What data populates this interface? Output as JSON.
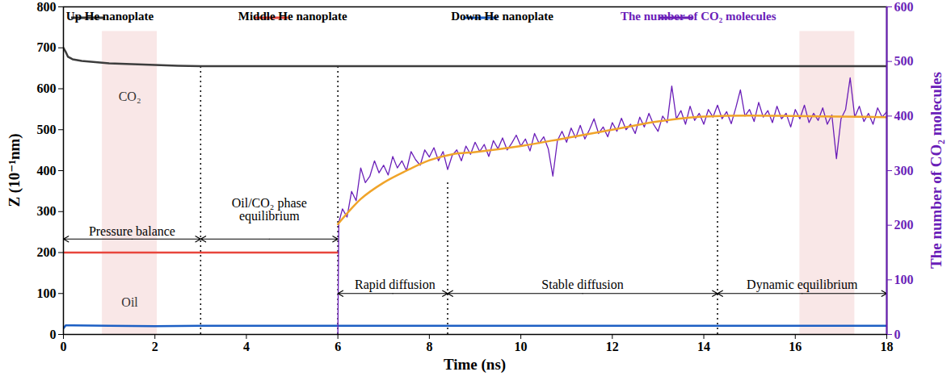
{
  "chart_data": {
    "type": "line",
    "xlabel": "Time (ns)",
    "ylabel": "Z (10⁻¹nm)",
    "y2label": "The number of CO₂ molecules",
    "xlim": [
      0,
      18
    ],
    "xticks": [
      0,
      2,
      4,
      6,
      8,
      10,
      12,
      14,
      16,
      18
    ],
    "ylim": [
      0,
      800
    ],
    "yticks": [
      0,
      100,
      200,
      300,
      400,
      500,
      600,
      700,
      800
    ],
    "y2lim": [
      0,
      600
    ],
    "y2ticks": [
      0,
      100,
      200,
      300,
      400,
      500,
      600
    ],
    "legend": "top",
    "series": [
      {
        "name": "Up He nanoplate",
        "color": "#3d3d3d",
        "line_style": "solid",
        "x": [
          0,
          0.05,
          0.1,
          0.2,
          0.4,
          0.7,
          1,
          1.5,
          2,
          2.5,
          3,
          6,
          10,
          14,
          18
        ],
        "values": [
          700,
          690,
          678,
          672,
          668,
          665,
          662,
          660,
          658,
          656,
          655,
          655,
          655,
          655,
          655
        ]
      },
      {
        "name": "Middle He nanoplate",
        "color": "#e8453c",
        "line_style": "solid",
        "x": [
          0,
          6
        ],
        "values": [
          200,
          200
        ]
      },
      {
        "name": "Down He nanoplate",
        "color": "#1c5fc4",
        "line_style": "solid",
        "x": [
          0,
          0.05,
          0.2,
          1,
          2,
          3,
          18
        ],
        "values": [
          15,
          22,
          22,
          21,
          20,
          21,
          21
        ]
      },
      {
        "name": "The number of CO₂ molecules",
        "color": "#6a1eb8",
        "axis": "y2",
        "line_style": "solid",
        "x": [
          6,
          6.02,
          6.1,
          6.2,
          6.3,
          6.4,
          6.5,
          6.6,
          6.7,
          6.8,
          6.9,
          7,
          7.1,
          7.2,
          7.3,
          7.4,
          7.5,
          7.6,
          7.7,
          7.8,
          7.9,
          8,
          8.1,
          8.2,
          8.3,
          8.4,
          8.5,
          8.6,
          8.7,
          8.8,
          8.9,
          9,
          9.1,
          9.2,
          9.3,
          9.4,
          9.5,
          9.6,
          9.7,
          9.8,
          9.9,
          10,
          10.1,
          10.2,
          10.3,
          10.4,
          10.5,
          10.6,
          10.7,
          10.8,
          10.9,
          11,
          11.1,
          11.2,
          11.3,
          11.4,
          11.5,
          11.6,
          11.7,
          11.8,
          11.9,
          12,
          12.1,
          12.2,
          12.3,
          12.4,
          12.5,
          12.6,
          12.7,
          12.8,
          12.9,
          13,
          13.1,
          13.2,
          13.3,
          13.4,
          13.5,
          13.6,
          13.7,
          13.8,
          13.9,
          14,
          14.1,
          14.2,
          14.3,
          14.4,
          14.5,
          14.6,
          14.7,
          14.8,
          14.9,
          15,
          15.1,
          15.2,
          15.3,
          15.4,
          15.5,
          15.6,
          15.7,
          15.8,
          15.9,
          16,
          16.1,
          16.2,
          16.3,
          16.4,
          16.5,
          16.6,
          16.7,
          16.8,
          16.9,
          17,
          17.1,
          17.2,
          17.3,
          17.4,
          17.5,
          17.6,
          17.7,
          17.8,
          17.9,
          18
        ],
        "values": [
          0,
          205,
          230,
          215,
          262,
          245,
          305,
          278,
          290,
          318,
          296,
          310,
          292,
          326,
          305,
          318,
          300,
          335,
          320,
          310,
          338,
          325,
          342,
          318,
          335,
          302,
          328,
          338,
          318,
          345,
          330,
          352,
          335,
          348,
          326,
          355,
          340,
          360,
          338,
          350,
          365,
          345,
          358,
          336,
          368,
          350,
          362,
          340,
          290,
          355,
          372,
          352,
          378,
          360,
          383,
          358,
          375,
          395,
          368,
          380,
          362,
          388,
          372,
          396,
          375,
          385,
          368,
          398,
          380,
          405,
          385,
          372,
          400,
          388,
          455,
          395,
          410,
          385,
          418,
          392,
          405,
          385,
          412,
          398,
          420,
          395,
          408,
          386,
          415,
          448,
          400,
          412,
          390,
          425,
          398,
          410,
          388,
          418,
          395,
          405,
          380,
          412,
          395,
          420,
          388,
          405,
          392,
          415,
          385,
          402,
          322,
          395,
          412,
          470,
          398,
          418,
          390,
          405,
          385,
          415,
          398,
          408
        ]
      },
      {
        "color": "#f0a42a",
        "axis": "y2",
        "line_style": "smooth",
        "x": [
          6,
          6.5,
          7,
          7.5,
          8,
          8.5,
          9,
          10,
          11,
          12,
          13,
          14,
          15,
          16,
          17,
          18
        ],
        "values": [
          202,
          248,
          278,
          300,
          319,
          330,
          334,
          345,
          360,
          375,
          390,
          399,
          401,
          400,
          399,
          398
        ]
      }
    ],
    "snapshots": [
      {
        "x0": 0.85,
        "x1": 2.05,
        "y0": 0,
        "y1": 740
      },
      {
        "x0": 16.1,
        "x1": 17.3,
        "y0": 0,
        "y1": 740
      }
    ],
    "reference_lines": [
      {
        "x": 3,
        "y1": 655
      },
      {
        "x": 6,
        "y1": 655
      },
      {
        "x": 8.4,
        "y1": 373
      },
      {
        "x": 14.3,
        "y1": 533
      }
    ],
    "phases": [
      {
        "label": "Pressure balance",
        "x0": 0,
        "x1": 3,
        "y": 233,
        "label_x": 1.5,
        "label_y": 252
      },
      {
        "label": "Oil/CO₂ phase equilibrium",
        "x0": 3,
        "x1": 6,
        "y": 233,
        "label_x": 4.5,
        "label_y": 305
      },
      {
        "label": "Rapid diffusion",
        "x0": 6,
        "x1": 8.4,
        "y": 100,
        "label_x": 7.25,
        "label_y": 122
      },
      {
        "label": "Stable diffusion",
        "x0": 8.4,
        "x1": 14.3,
        "y": 100,
        "label_x": 11.35,
        "label_y": 122
      },
      {
        "label": "Dynamic equilibrium",
        "x0": 14.3,
        "x1": 18,
        "y": 100,
        "label_x": 16.15,
        "label_y": 122
      }
    ],
    "annotations": [
      {
        "text": "CO₂",
        "x": 1.45,
        "y": 580
      },
      {
        "text": "Oil",
        "x": 1.45,
        "y": 78
      }
    ]
  }
}
